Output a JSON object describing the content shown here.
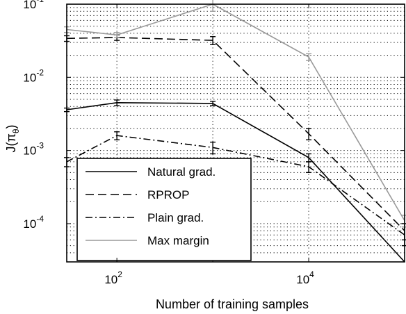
{
  "chart_data": {
    "type": "line",
    "title": "",
    "xlabel": "Number of training samples",
    "ylabel": "J(π",
    "ylabel_sub": "θ",
    "ylabel_close": ")",
    "xscale": "log",
    "yscale": "log",
    "xlim": [
      30,
      100000
    ],
    "ylim": [
      3e-05,
      0.1
    ],
    "x_ticks": [
      {
        "value": 100,
        "base": "10",
        "exp": "2"
      },
      {
        "value": 10000,
        "base": "10",
        "exp": "4"
      }
    ],
    "y_ticks": [
      {
        "value": 0.1,
        "base": "10",
        "exp": "-1"
      },
      {
        "value": 0.01,
        "base": "10",
        "exp": "-2"
      },
      {
        "value": 0.001,
        "base": "10",
        "exp": "-3"
      },
      {
        "value": 0.0001,
        "base": "10",
        "exp": "-4"
      }
    ],
    "grid": true,
    "legend_position": "bottom-left",
    "x": [
      30,
      100,
      1000,
      10000,
      100000
    ],
    "series": [
      {
        "name": "Natural grad.",
        "style": "solid",
        "color": "#000000",
        "values": [
          0.0036,
          0.0045,
          0.0044,
          0.0008,
          3e-05
        ],
        "err": [
          0.0002,
          0.0004,
          0.0003,
          0.0001,
          0
        ]
      },
      {
        "name": "RPROP",
        "style": "dashed",
        "color": "#000000",
        "values": [
          0.034,
          0.035,
          0.032,
          0.0017,
          8e-05
        ],
        "err": [
          0.003,
          0.003,
          0.004,
          0.0003,
          2e-05
        ]
      },
      {
        "name": "Plain grad.",
        "style": "dashdot",
        "color": "#000000",
        "values": [
          0.0007,
          0.0016,
          0.0011,
          0.0006,
          7e-05
        ],
        "err": [
          0.0001,
          0.0002,
          0.0002,
          0.0001,
          2e-05
        ]
      },
      {
        "name": "Max margin",
        "style": "solid",
        "color": "#9a9a9a",
        "values": [
          0.045,
          0.038,
          0.1,
          0.019,
          0.00011
        ],
        "err": [
          0.004,
          0.003,
          0.02,
          0.002,
          2e-05
        ]
      }
    ]
  }
}
